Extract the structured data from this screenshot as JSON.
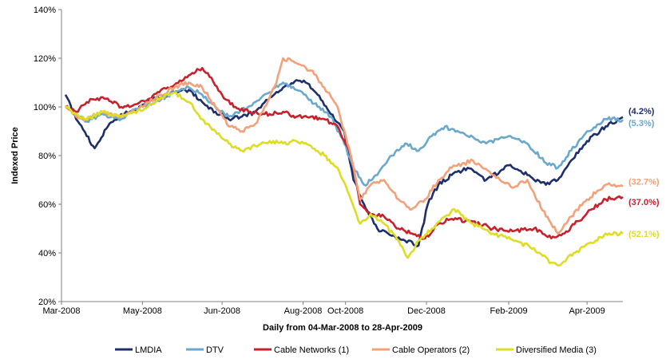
{
  "chart_data": {
    "type": "line",
    "title": "",
    "xlabel": "Daily from 04-Mar-2008 to 28-Apr-2009",
    "ylabel": "Indexed Price",
    "ylim": [
      20,
      140
    ],
    "y_ticks": [
      "20%",
      "40%",
      "60%",
      "80%",
      "100%",
      "120%",
      "140%"
    ],
    "x_ticks": [
      "Mar-2008",
      "May-2008",
      "Jun-2008",
      "Aug-2008",
      "Oct-2008",
      "Dec-2008",
      "Feb-2009",
      "Apr-2009"
    ],
    "x_tick_dates": [
      "2008-03-01",
      "2008-05-01",
      "2008-06-30",
      "2008-08-30",
      "2008-10-01",
      "2008-12-01",
      "2009-02-01",
      "2009-04-01"
    ],
    "x_range": [
      "2008-03-01",
      "2009-04-28"
    ],
    "grid": false,
    "legend_position": "bottom",
    "series": [
      {
        "name": "LMDIA",
        "color": "#1f2f6b",
        "end_label": "(4.2%)",
        "points": [
          [
            "2008-03-04",
            105
          ],
          [
            "2008-03-12",
            95
          ],
          [
            "2008-03-20",
            88
          ],
          [
            "2008-03-26",
            83
          ],
          [
            "2008-04-05",
            92
          ],
          [
            "2008-04-15",
            97
          ],
          [
            "2008-04-25",
            98
          ],
          [
            "2008-05-05",
            103
          ],
          [
            "2008-05-15",
            104
          ],
          [
            "2008-05-25",
            106
          ],
          [
            "2008-06-05",
            107
          ],
          [
            "2008-06-15",
            102
          ],
          [
            "2008-06-25",
            98
          ],
          [
            "2008-07-05",
            95
          ],
          [
            "2008-07-15",
            96
          ],
          [
            "2008-07-25",
            98
          ],
          [
            "2008-08-05",
            104
          ],
          [
            "2008-08-15",
            108
          ],
          [
            "2008-08-25",
            111
          ],
          [
            "2008-09-01",
            110
          ],
          [
            "2008-09-10",
            105
          ],
          [
            "2008-09-20",
            97
          ],
          [
            "2008-09-30",
            90
          ],
          [
            "2008-10-07",
            70
          ],
          [
            "2008-10-15",
            60
          ],
          [
            "2008-10-25",
            50
          ],
          [
            "2008-11-05",
            47
          ],
          [
            "2008-11-15",
            45
          ],
          [
            "2008-11-25",
            43
          ],
          [
            "2008-12-02",
            60
          ],
          [
            "2008-12-10",
            68
          ],
          [
            "2008-12-20",
            72
          ],
          [
            "2009-01-01",
            75
          ],
          [
            "2009-01-15",
            70
          ],
          [
            "2009-02-01",
            76
          ],
          [
            "2009-02-15",
            72
          ],
          [
            "2009-03-01",
            68
          ],
          [
            "2009-03-10",
            70
          ],
          [
            "2009-03-20",
            78
          ],
          [
            "2009-04-01",
            86
          ],
          [
            "2009-04-15",
            92
          ],
          [
            "2009-04-28",
            95.8
          ]
        ]
      },
      {
        "name": "DTV",
        "color": "#6aa8cc",
        "end_label": "(5.3%)",
        "points": [
          [
            "2008-03-04",
            100
          ],
          [
            "2008-03-12",
            97
          ],
          [
            "2008-03-20",
            94
          ],
          [
            "2008-04-01",
            97
          ],
          [
            "2008-04-15",
            95
          ],
          [
            "2008-04-25",
            99
          ],
          [
            "2008-05-05",
            101
          ],
          [
            "2008-05-15",
            103
          ],
          [
            "2008-05-25",
            106
          ],
          [
            "2008-06-05",
            108
          ],
          [
            "2008-06-15",
            105
          ],
          [
            "2008-06-25",
            100
          ],
          [
            "2008-07-05",
            96
          ],
          [
            "2008-07-15",
            99
          ],
          [
            "2008-07-25",
            102
          ],
          [
            "2008-08-05",
            106
          ],
          [
            "2008-08-15",
            110
          ],
          [
            "2008-08-25",
            107
          ],
          [
            "2008-09-01",
            105
          ],
          [
            "2008-09-10",
            100
          ],
          [
            "2008-09-20",
            96
          ],
          [
            "2008-09-30",
            85
          ],
          [
            "2008-10-07",
            75
          ],
          [
            "2008-10-15",
            68
          ],
          [
            "2008-10-25",
            72
          ],
          [
            "2008-11-05",
            80
          ],
          [
            "2008-11-15",
            85
          ],
          [
            "2008-11-25",
            82
          ],
          [
            "2008-12-05",
            88
          ],
          [
            "2008-12-15",
            92
          ],
          [
            "2009-01-01",
            88
          ],
          [
            "2009-01-15",
            85
          ],
          [
            "2009-02-01",
            88
          ],
          [
            "2009-02-15",
            85
          ],
          [
            "2009-03-01",
            77
          ],
          [
            "2009-03-10",
            75
          ],
          [
            "2009-03-20",
            82
          ],
          [
            "2009-04-01",
            90
          ],
          [
            "2009-04-15",
            95
          ],
          [
            "2009-04-28",
            94.7
          ]
        ]
      },
      {
        "name": "Cable Networks (1)",
        "color": "#c8202c",
        "end_label": "(37.0%)",
        "points": [
          [
            "2008-03-04",
            100
          ],
          [
            "2008-03-12",
            98
          ],
          [
            "2008-03-20",
            102
          ],
          [
            "2008-04-01",
            104
          ],
          [
            "2008-04-15",
            100
          ],
          [
            "2008-04-25",
            101
          ],
          [
            "2008-05-05",
            103
          ],
          [
            "2008-05-15",
            107
          ],
          [
            "2008-05-25",
            109
          ],
          [
            "2008-06-05",
            113
          ],
          [
            "2008-06-15",
            116
          ],
          [
            "2008-06-22",
            112
          ],
          [
            "2008-06-30",
            105
          ],
          [
            "2008-07-10",
            100
          ],
          [
            "2008-07-20",
            98
          ],
          [
            "2008-08-01",
            97
          ],
          [
            "2008-08-15",
            98
          ],
          [
            "2008-08-25",
            96
          ],
          [
            "2008-09-05",
            96
          ],
          [
            "2008-09-15",
            95
          ],
          [
            "2008-09-25",
            92
          ],
          [
            "2008-10-05",
            80
          ],
          [
            "2008-10-12",
            60
          ],
          [
            "2008-10-20",
            56
          ],
          [
            "2008-10-30",
            55
          ],
          [
            "2008-11-10",
            50
          ],
          [
            "2008-11-20",
            48
          ],
          [
            "2008-11-30",
            46
          ],
          [
            "2008-12-10",
            52
          ],
          [
            "2008-12-20",
            54
          ],
          [
            "2009-01-05",
            53
          ],
          [
            "2009-01-20",
            50
          ],
          [
            "2009-02-05",
            49
          ],
          [
            "2009-02-20",
            50
          ],
          [
            "2009-03-05",
            46
          ],
          [
            "2009-03-15",
            48
          ],
          [
            "2009-03-25",
            53
          ],
          [
            "2009-04-05",
            58
          ],
          [
            "2009-04-15",
            62
          ],
          [
            "2009-04-28",
            63
          ]
        ]
      },
      {
        "name": "Cable Operators (2)",
        "color": "#f4a07a",
        "end_label": "(32.7%)",
        "points": [
          [
            "2008-03-04",
            100
          ],
          [
            "2008-03-12",
            96
          ],
          [
            "2008-03-20",
            95
          ],
          [
            "2008-04-01",
            98
          ],
          [
            "2008-04-15",
            96
          ],
          [
            "2008-04-25",
            98
          ],
          [
            "2008-05-05",
            102
          ],
          [
            "2008-05-15",
            105
          ],
          [
            "2008-05-25",
            108
          ],
          [
            "2008-06-05",
            110
          ],
          [
            "2008-06-15",
            108
          ],
          [
            "2008-06-25",
            100
          ],
          [
            "2008-07-05",
            92
          ],
          [
            "2008-07-15",
            90
          ],
          [
            "2008-07-25",
            93
          ],
          [
            "2008-08-01",
            100
          ],
          [
            "2008-08-10",
            110
          ],
          [
            "2008-08-15",
            120
          ],
          [
            "2008-08-25",
            118
          ],
          [
            "2008-09-05",
            115
          ],
          [
            "2008-09-15",
            108
          ],
          [
            "2008-09-25",
            100
          ],
          [
            "2008-10-05",
            80
          ],
          [
            "2008-10-12",
            62
          ],
          [
            "2008-10-20",
            68
          ],
          [
            "2008-10-30",
            70
          ],
          [
            "2008-11-10",
            62
          ],
          [
            "2008-11-20",
            58
          ],
          [
            "2008-11-30",
            62
          ],
          [
            "2008-12-10",
            70
          ],
          [
            "2008-12-20",
            75
          ],
          [
            "2009-01-05",
            78
          ],
          [
            "2009-01-20",
            72
          ],
          [
            "2009-02-05",
            67
          ],
          [
            "2009-02-15",
            70
          ],
          [
            "2009-03-01",
            55
          ],
          [
            "2009-03-10",
            48
          ],
          [
            "2009-03-20",
            55
          ],
          [
            "2009-04-01",
            62
          ],
          [
            "2009-04-15",
            68
          ],
          [
            "2009-04-28",
            67.3
          ]
        ]
      },
      {
        "name": "Diversified Media (3)",
        "color": "#dddd22",
        "end_label": "(52.1%)",
        "points": [
          [
            "2008-03-04",
            100
          ],
          [
            "2008-03-12",
            97
          ],
          [
            "2008-03-20",
            95
          ],
          [
            "2008-04-01",
            98
          ],
          [
            "2008-04-15",
            96
          ],
          [
            "2008-04-25",
            98
          ],
          [
            "2008-05-05",
            100
          ],
          [
            "2008-05-15",
            104
          ],
          [
            "2008-05-25",
            106
          ],
          [
            "2008-06-05",
            102
          ],
          [
            "2008-06-15",
            95
          ],
          [
            "2008-06-25",
            90
          ],
          [
            "2008-07-05",
            85
          ],
          [
            "2008-07-15",
            82
          ],
          [
            "2008-07-25",
            84
          ],
          [
            "2008-08-05",
            86
          ],
          [
            "2008-08-15",
            85
          ],
          [
            "2008-08-25",
            86
          ],
          [
            "2008-09-05",
            84
          ],
          [
            "2008-09-15",
            80
          ],
          [
            "2008-09-25",
            75
          ],
          [
            "2008-10-05",
            62
          ],
          [
            "2008-10-12",
            52
          ],
          [
            "2008-10-20",
            56
          ],
          [
            "2008-10-30",
            52
          ],
          [
            "2008-11-10",
            45
          ],
          [
            "2008-11-17",
            38
          ],
          [
            "2008-11-25",
            45
          ],
          [
            "2008-12-05",
            50
          ],
          [
            "2008-12-15",
            55
          ],
          [
            "2008-12-22",
            58
          ],
          [
            "2009-01-05",
            52
          ],
          [
            "2009-01-20",
            48
          ],
          [
            "2009-02-05",
            45
          ],
          [
            "2009-02-20",
            42
          ],
          [
            "2009-03-05",
            36
          ],
          [
            "2009-03-12",
            35
          ],
          [
            "2009-03-22",
            40
          ],
          [
            "2009-04-05",
            44
          ],
          [
            "2009-04-15",
            48
          ],
          [
            "2009-04-28",
            47.9
          ]
        ]
      }
    ]
  }
}
